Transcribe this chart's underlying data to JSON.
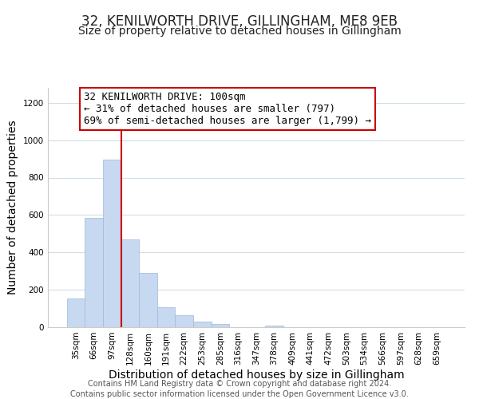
{
  "title": "32, KENILWORTH DRIVE, GILLINGHAM, ME8 9EB",
  "subtitle": "Size of property relative to detached houses in Gillingham",
  "xlabel": "Distribution of detached houses by size in Gillingham",
  "ylabel": "Number of detached properties",
  "bar_labels": [
    "35sqm",
    "66sqm",
    "97sqm",
    "128sqm",
    "160sqm",
    "191sqm",
    "222sqm",
    "253sqm",
    "285sqm",
    "316sqm",
    "347sqm",
    "378sqm",
    "409sqm",
    "441sqm",
    "472sqm",
    "503sqm",
    "534sqm",
    "566sqm",
    "597sqm",
    "628sqm",
    "659sqm"
  ],
  "bar_values": [
    155,
    585,
    895,
    470,
    290,
    105,
    65,
    28,
    15,
    0,
    0,
    10,
    0,
    0,
    0,
    0,
    0,
    0,
    0,
    0,
    0
  ],
  "bar_color": "#c6d9f0",
  "bar_edge_color": "#a0b8d8",
  "vline_x_index": 2,
  "vline_color": "#cc0000",
  "annotation_line1": "32 KENILWORTH DRIVE: 100sqm",
  "annotation_line2": "← 31% of detached houses are smaller (797)",
  "annotation_line3": "69% of semi-detached houses are larger (1,799) →",
  "ylim": [
    0,
    1280
  ],
  "yticks": [
    0,
    200,
    400,
    600,
    800,
    1000,
    1200
  ],
  "footer_line1": "Contains HM Land Registry data © Crown copyright and database right 2024.",
  "footer_line2": "Contains public sector information licensed under the Open Government Licence v3.0.",
  "title_fontsize": 12,
  "subtitle_fontsize": 10,
  "axis_label_fontsize": 10,
  "tick_fontsize": 7.5,
  "annotation_fontsize": 9,
  "footer_fontsize": 7,
  "bg_color": "#ffffff",
  "grid_color": "#d0dde8"
}
